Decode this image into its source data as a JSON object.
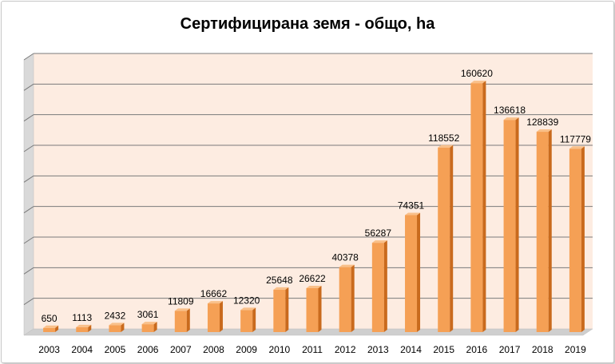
{
  "chart_data": {
    "type": "bar",
    "title": "Сертифицирана земя - общо, ha",
    "categories": [
      "2003",
      "2004",
      "2005",
      "2006",
      "2007",
      "2008",
      "2009",
      "2010",
      "2011",
      "2012",
      "2013",
      "2014",
      "2015",
      "2016",
      "2017",
      "2018",
      "2019"
    ],
    "values": [
      650,
      1113,
      2432,
      3061,
      11809,
      16662,
      12320,
      25648,
      26622,
      40378,
      56287,
      74351,
      118552,
      160620,
      136618,
      128839,
      117779
    ],
    "data_labels": [
      "650",
      "1113",
      "2432",
      "3061",
      "11809",
      "16662",
      "12320",
      "25648",
      "26622",
      "40378",
      "56287",
      "74351",
      "118552",
      "160620",
      "136618",
      "128839",
      "117779"
    ],
    "ylim": [
      0,
      180000
    ],
    "grid": true,
    "y_tick_labels_shown": false,
    "legend": "none",
    "colors": {
      "bar_front": "#f5a055",
      "bar_side": "#c96a1d",
      "bar_top": "#f9c08a",
      "wall": "#fdece1",
      "grid": "#7a7a7a"
    }
  }
}
